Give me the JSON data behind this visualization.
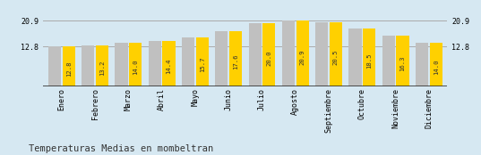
{
  "months": [
    "Enero",
    "Febrero",
    "Marzo",
    "Abril",
    "Mayo",
    "Junio",
    "Julio",
    "Agosto",
    "Septiembre",
    "Octubre",
    "Noviembre",
    "Diciembre"
  ],
  "values": [
    12.8,
    13.2,
    14.0,
    14.4,
    15.7,
    17.6,
    20.0,
    20.9,
    20.5,
    18.5,
    16.3,
    14.0
  ],
  "bar_color_yellow": "#FFD000",
  "bar_color_gray": "#C0C0C0",
  "background_color": "#D6E8F2",
  "title": "Temperaturas Medias en mombeltran",
  "ymax": 20.9,
  "yticks": [
    12.8,
    20.9
  ],
  "label_fontsize": 6.0,
  "title_fontsize": 7.5,
  "value_label_fontsize": 5.2,
  "hline_color": "#AAAAAA",
  "axis_line_color": "#333333"
}
